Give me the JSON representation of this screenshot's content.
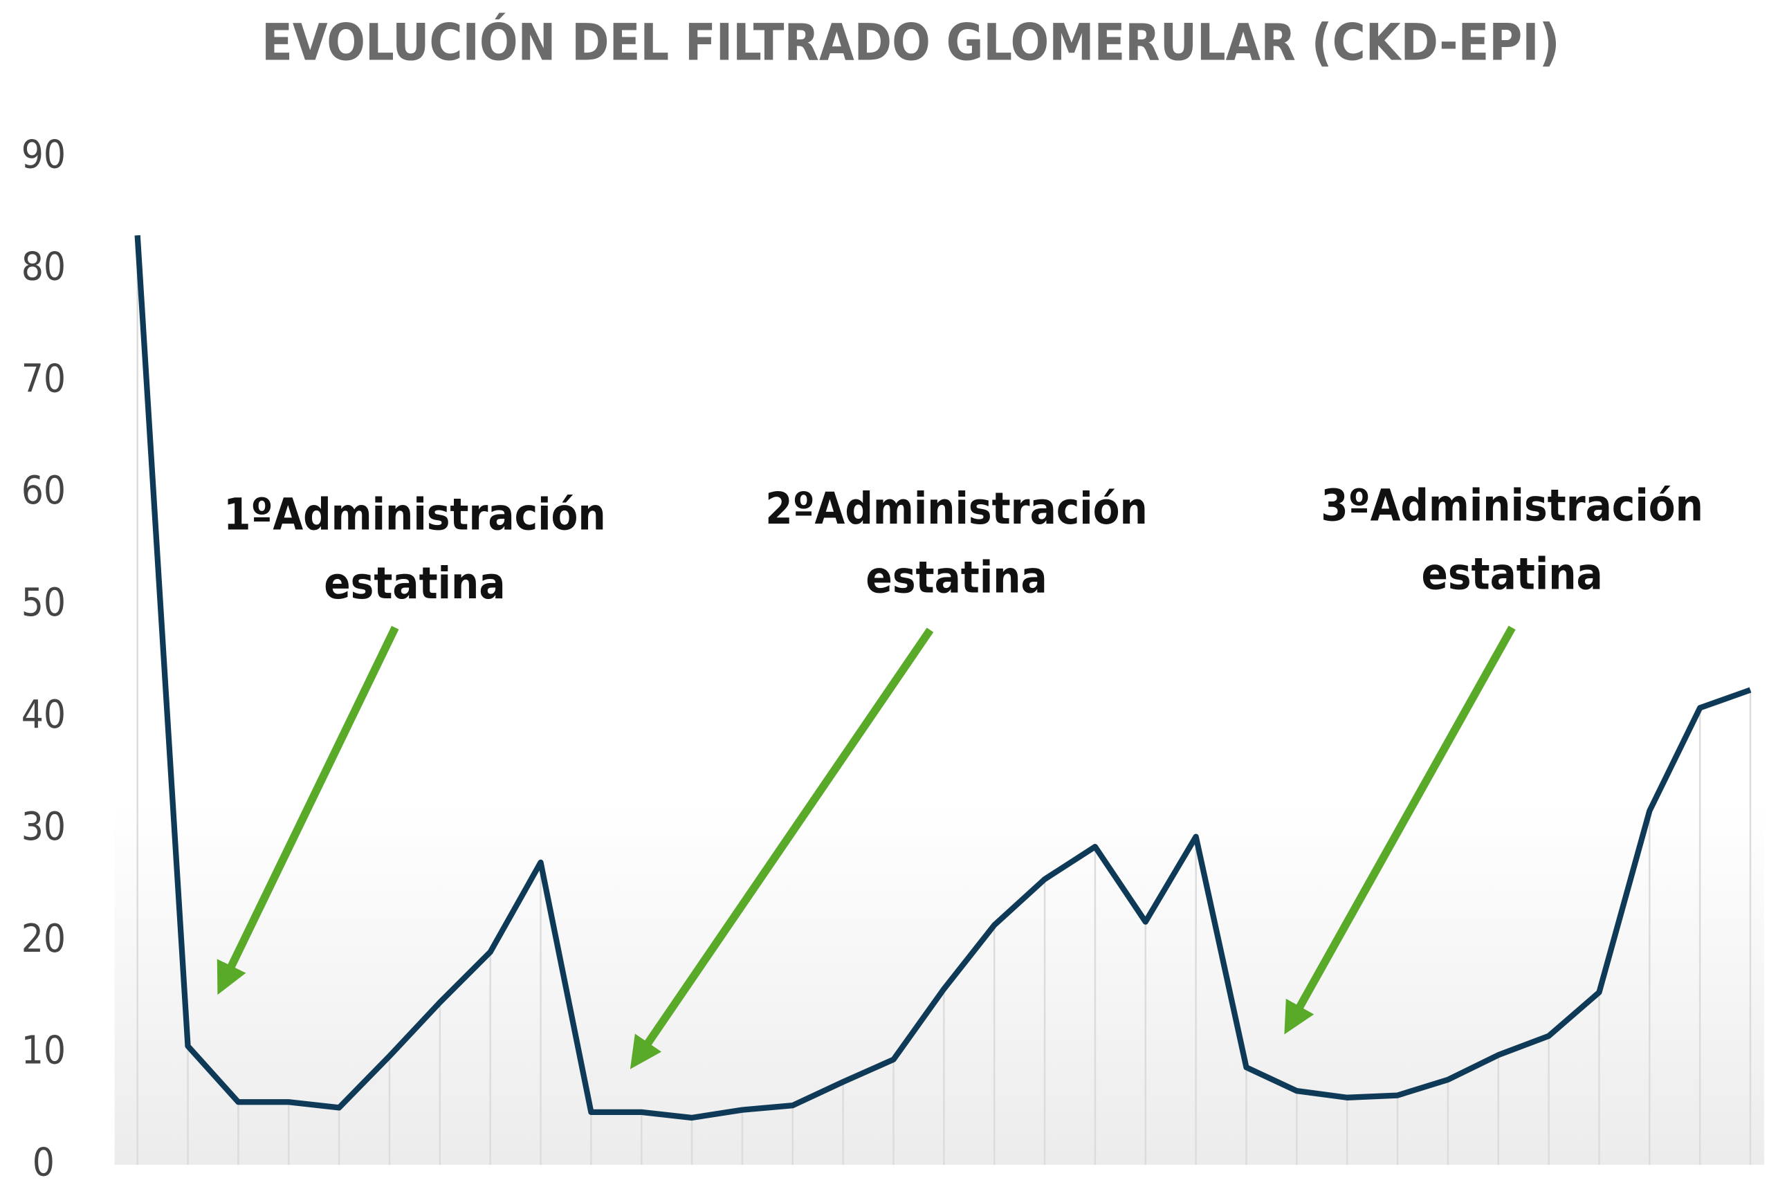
{
  "chart_data": {
    "type": "line",
    "title": "EVOLUCIÓN DEL FILTRADO GLOMERULAR (CKD-EPI)",
    "categories": [
      null,
      null,
      null,
      null,
      null,
      null,
      null,
      null,
      null,
      null,
      null,
      null,
      null,
      null,
      null,
      null,
      null,
      null,
      null,
      null,
      null,
      null,
      null,
      null,
      null,
      null,
      null,
      null,
      null,
      null,
      null,
      null,
      null
    ],
    "values": [
      83,
      10.6,
      5.6,
      5.6,
      5.1,
      9.7,
      14.5,
      19,
      27,
      4.7,
      4.7,
      4.2,
      4.9,
      5.3,
      7.4,
      9.4,
      15.7,
      21.4,
      25.5,
      28.4,
      21.7,
      29.3,
      8.7,
      6.6,
      6,
      6.2,
      7.6,
      9.8,
      11.5,
      15.4,
      31.6,
      40.8,
      42.4
    ],
    "color": "#0f3a57",
    "ylim": [
      0,
      90
    ],
    "yticks": [
      0,
      10,
      20,
      30,
      40,
      50,
      60,
      70,
      80,
      90
    ],
    "annotations": [
      {
        "lines": [
          "1ºAdministración",
          "estatina"
        ]
      },
      {
        "lines": [
          "2ºAdministración",
          "estatina"
        ]
      },
      {
        "lines": [
          "3ºAdministración",
          "estatina"
        ]
      }
    ]
  }
}
